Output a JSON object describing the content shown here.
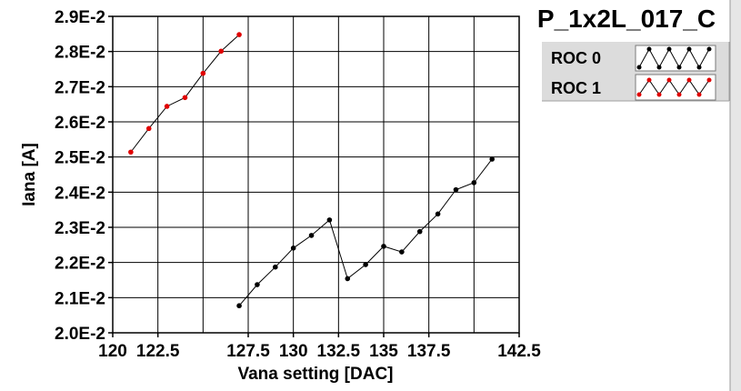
{
  "chart_data": {
    "type": "line",
    "title": "P_1x2L_017_C",
    "xlabel": "Vana setting [DAC]",
    "ylabel": "Iana [A]",
    "xlim": [
      120,
      142.5
    ],
    "ylim": [
      0.02,
      0.029
    ],
    "grid": true,
    "x_ticks": [
      120,
      122.5,
      127.5,
      130,
      132.5,
      135,
      137.5,
      142.5
    ],
    "x_tick_labels": [
      "120",
      "122.5",
      "127.5",
      "130",
      "132.5",
      "135",
      "137.5",
      "142.5"
    ],
    "y_ticks": [
      0.02,
      0.021,
      0.022,
      0.023,
      0.024,
      0.025,
      0.026,
      0.027,
      0.028,
      0.029
    ],
    "y_tick_labels": [
      "2.0E-2",
      "2.1E-2",
      "2.2E-2",
      "2.3E-2",
      "2.4E-2",
      "2.5E-2",
      "2.6E-2",
      "2.7E-2",
      "2.8E-2",
      "2.9E-2"
    ],
    "legend_position": "top-right",
    "series": [
      {
        "name": "ROC 0",
        "color": "#000000",
        "marker_color": "#000000",
        "x": [
          127,
          128,
          129,
          130,
          131,
          132,
          133,
          134,
          135,
          136,
          137,
          138,
          139,
          140,
          141
        ],
        "y": [
          0.02077,
          0.02137,
          0.02187,
          0.02241,
          0.02277,
          0.02321,
          0.02154,
          0.02194,
          0.02246,
          0.0223,
          0.02288,
          0.02338,
          0.02407,
          0.02427,
          0.02494
        ]
      },
      {
        "name": "ROC 1",
        "color": "#000000",
        "marker_color": "#e00000",
        "x": [
          121,
          122,
          123,
          124,
          125,
          126,
          127
        ],
        "y": [
          0.02514,
          0.02581,
          0.02644,
          0.02669,
          0.02738,
          0.02801,
          0.02848
        ]
      }
    ]
  }
}
